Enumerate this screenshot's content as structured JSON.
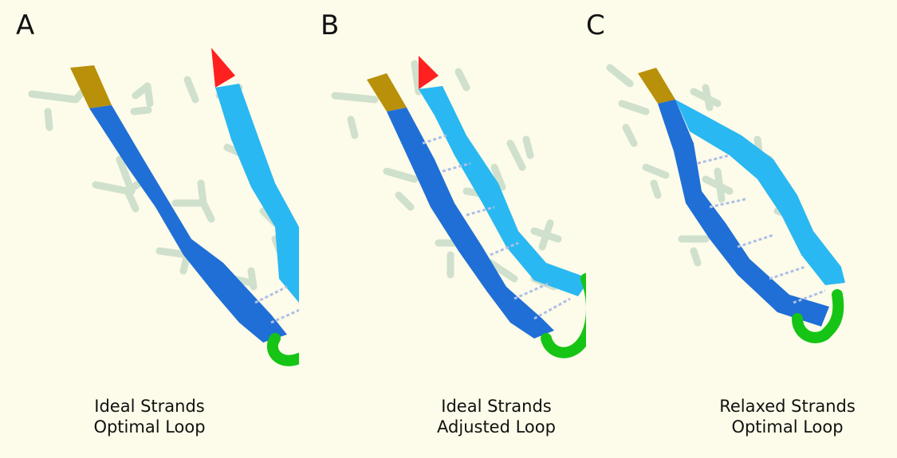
{
  "panels": [
    {
      "letter": "A",
      "caption_line1": "Ideal Strands",
      "caption_line2": "Optimal Loop"
    },
    {
      "letter": "B",
      "caption_line1": "Ideal Strands",
      "caption_line2": "Adjusted Loop"
    },
    {
      "letter": "C",
      "caption_line1": "Relaxed Strands",
      "caption_line2": "Optimal Loop"
    }
  ],
  "colors": {
    "background": "#fdfbe9",
    "strand_dark": "#1f6fd6",
    "strand_light": "#2ab8f2",
    "loop": "#16c416",
    "n_terminus": "#b8900a",
    "c_terminus": "#ff2020",
    "side_chain": "#cfe0cd",
    "h_bond": "#aebfe8"
  }
}
